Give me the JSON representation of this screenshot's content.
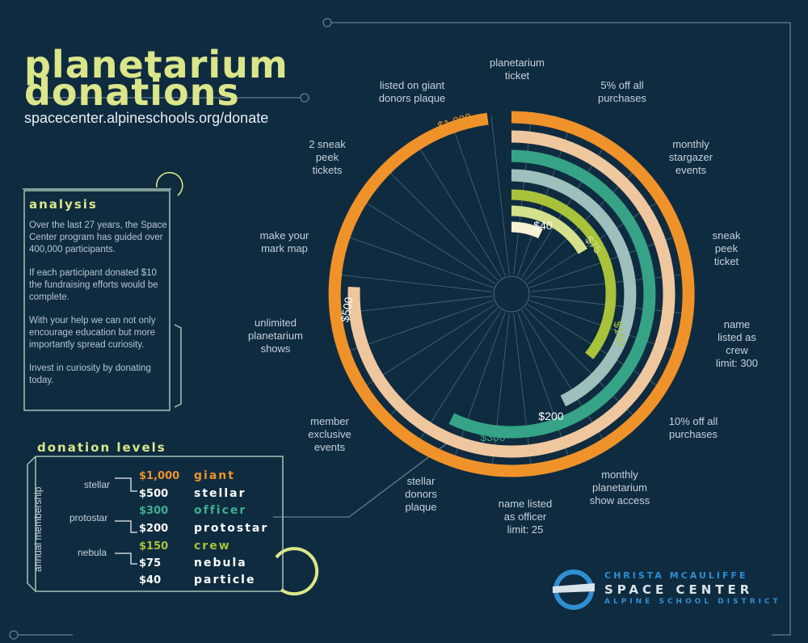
{
  "header": {
    "title_line1": "planetarium",
    "title_line2": "donations",
    "url": "spacecenter.alpineschools.org/donate"
  },
  "analysis": {
    "heading": "analysis",
    "paragraphs": [
      "Over the last 27 years, the Space Center program has guided over 400,000 participants.",
      "If each participant donated $10 the fundraising efforts would be complete.",
      "With your help we can not only encourage education but more importantly spread curiosity.",
      "Invest in curiosity by donating today."
    ]
  },
  "levels": {
    "heading": "donation levels",
    "axis_label": "annual membership",
    "groups": [
      {
        "name": "stellar"
      },
      {
        "name": "protostar"
      },
      {
        "name": "nebula"
      }
    ],
    "items": [
      {
        "amount": "$1,000",
        "name": "giant",
        "color": "#f0922a"
      },
      {
        "amount": "$500",
        "name": "stellar",
        "color": "#ffffff"
      },
      {
        "amount": "$300",
        "name": "officer",
        "color": "#3fae8f"
      },
      {
        "amount": "$200",
        "name": "protostar",
        "color": "#ffffff"
      },
      {
        "amount": "$150",
        "name": "crew",
        "color": "#a8c23a"
      },
      {
        "amount": "$75",
        "name": "nebula",
        "color": "#ffffff"
      },
      {
        "amount": "$40",
        "name": "particle",
        "color": "#ffffff"
      }
    ]
  },
  "logo": {
    "line1": "CHRISTA MCAULIFFE",
    "line2": "SPACE CENTER",
    "line3": "ALPINE SCHOOL DISTRICT"
  },
  "chart_data": {
    "type": "radial-bar",
    "categories": [
      "planetarium ticket",
      "5% off all purchases",
      "monthly stargazer events",
      "sneak peek ticket",
      "name listed as crew limit: 300",
      "10% off all purchases",
      "monthly planetarium show access",
      "name listed as officer limit: 25",
      "stellar donors plaque",
      "member exclusive events",
      "unlimited planetarium shows",
      "make your mark map",
      "2 sneak peek tickets",
      "listed on giant donors plaque"
    ],
    "category_lines": [
      [
        "planetarium",
        "ticket"
      ],
      [
        "5% off all",
        "purchases"
      ],
      [
        "monthly",
        "stargazer",
        "events"
      ],
      [
        "sneak",
        "peek",
        "ticket"
      ],
      [
        "name",
        "listed as",
        "crew",
        "limit: 300"
      ],
      [
        "10% off all",
        "purchases"
      ],
      [
        "monthly",
        "planetarium",
        "show access"
      ],
      [
        "name listed",
        "as officer",
        "limit: 25"
      ],
      [
        "stellar",
        "donors",
        "plaque"
      ],
      [
        "member",
        "exclusive",
        "events"
      ],
      [
        "unlimited",
        "planetarium",
        "shows"
      ],
      [
        "make your",
        "mark map"
      ],
      [
        "2 sneak",
        "peek",
        "tickets"
      ],
      [
        "listed on giant",
        "donors plaque"
      ]
    ],
    "series": [
      {
        "name": "$40",
        "value": 40,
        "color": "#f4f2d2"
      },
      {
        "name": "$75",
        "value": 75,
        "color": "#d4e08c"
      },
      {
        "name": "$150",
        "value": 150,
        "color": "#a8c23a"
      },
      {
        "name": "$200",
        "value": 200,
        "color": "#9ec0bc"
      },
      {
        "name": "$300",
        "value": 300,
        "color": "#36a386"
      },
      {
        "name": "$500",
        "value": 500,
        "color": "#efc79f"
      },
      {
        "name": "$1,000",
        "value": 1000,
        "color": "#f0922a"
      }
    ],
    "value_labels": [
      "$40",
      "$75",
      "$150",
      "$200",
      "$300",
      "$500",
      "$1,000"
    ]
  }
}
